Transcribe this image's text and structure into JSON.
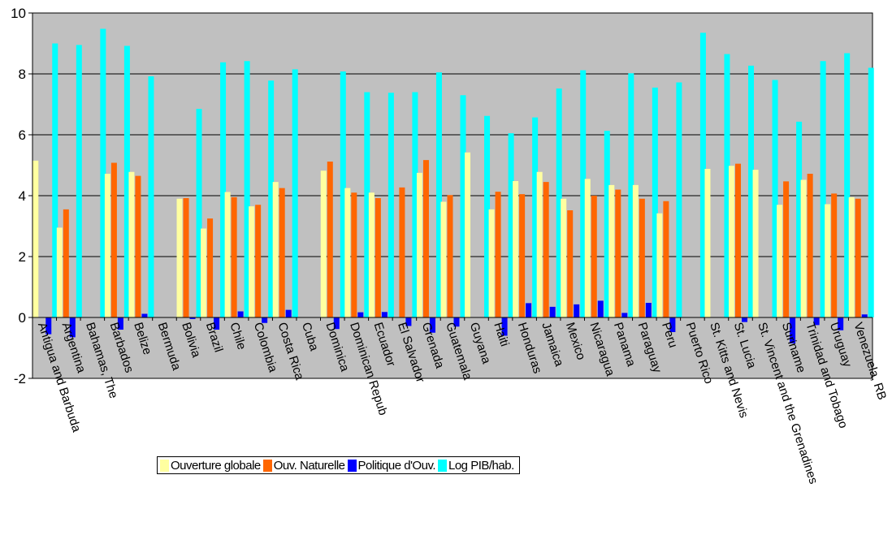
{
  "chart_data": {
    "type": "bar",
    "title": "",
    "xlabel": "",
    "ylabel": "",
    "ylim": [
      -2,
      10
    ],
    "yticks": [
      -2,
      0,
      2,
      4,
      6,
      8,
      10
    ],
    "grid": true,
    "plot_background": "#c0c0c0",
    "legend_position": "bottom",
    "categories": [
      "Antigua and Barbuda",
      "Argentina",
      "Bahamas, The",
      "Barbados",
      "Belize",
      "Bermuda",
      "Bolivia",
      "Brazil",
      "Chile",
      "Colombia",
      "Costa Rica",
      "Cuba",
      "Dominica",
      "Dominican Repub",
      "Ecuador",
      "El Salvador",
      "Grenada",
      "Guatemala",
      "Guyana",
      "Haiti",
      "Honduras",
      "Jamaica",
      "Mexico",
      "Nicaragua",
      "Panama",
      "Paraguay",
      "Peru",
      "Puerto Rico",
      "St. Kitts and Nevis",
      "St. Lucia",
      "St. Vincent and the Grenadines",
      "Suriname",
      "Trinidad and Tobago",
      "Uruguay",
      "Venezuela, RB"
    ],
    "series": [
      {
        "name": "Ouverture globale",
        "color": "#ffffa0",
        "values": [
          5.15,
          2.95,
          null,
          4.72,
          4.78,
          null,
          3.9,
          2.92,
          4.12,
          3.65,
          4.45,
          null,
          4.82,
          4.25,
          4.1,
          null,
          4.75,
          3.8,
          5.42,
          3.55,
          4.48,
          4.78,
          3.9,
          4.55,
          4.35,
          4.35,
          3.42,
          null,
          4.88,
          4.98,
          4.85,
          3.7,
          4.52,
          3.72,
          3.95
        ]
      },
      {
        "name": "Ouv. Naturelle",
        "color": "#ff6600",
        "values": [
          null,
          3.55,
          null,
          5.08,
          4.65,
          null,
          3.92,
          3.25,
          3.95,
          3.7,
          4.25,
          null,
          5.12,
          4.1,
          3.92,
          4.27,
          5.17,
          4.02,
          null,
          4.13,
          4.05,
          4.45,
          3.52,
          4.0,
          4.2,
          3.9,
          3.82,
          null,
          null,
          5.05,
          null,
          4.47,
          4.72,
          4.07,
          3.9
        ]
      },
      {
        "name": "Politique d'Ouv.",
        "color": "#0000ff",
        "values": [
          -0.55,
          -0.65,
          null,
          -0.4,
          0.12,
          null,
          -0.05,
          -0.4,
          0.2,
          -0.18,
          0.25,
          null,
          -0.38,
          0.17,
          0.18,
          -0.28,
          -0.5,
          -0.3,
          null,
          -0.6,
          0.47,
          0.35,
          0.43,
          0.55,
          0.15,
          0.48,
          -0.48,
          null,
          null,
          -0.15,
          null,
          -0.85,
          -0.25,
          -0.42,
          0.1
        ]
      },
      {
        "name": "Log PIB/hab.",
        "color": "#00ffff",
        "values": [
          9.0,
          8.95,
          9.48,
          8.92,
          7.92,
          null,
          6.85,
          8.38,
          8.42,
          7.78,
          8.15,
          null,
          8.08,
          7.4,
          7.38,
          7.4,
          8.05,
          7.3,
          6.62,
          6.05,
          6.57,
          7.52,
          8.12,
          6.13,
          8.02,
          7.55,
          7.72,
          9.35,
          8.65,
          8.27,
          7.8,
          6.43,
          8.42,
          8.68,
          8.2
        ]
      }
    ]
  },
  "legend": {
    "items": [
      {
        "label": "Ouverture globale",
        "color": "#ffffa0"
      },
      {
        "label": "Ouv. Naturelle",
        "color": "#ff6600"
      },
      {
        "label": "Politique d'Ouv.",
        "color": "#0000ff"
      },
      {
        "label": "Log PIB/hab.",
        "color": "#00ffff"
      }
    ]
  }
}
